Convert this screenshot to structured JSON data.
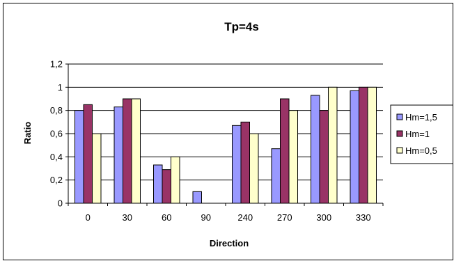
{
  "chart_data": {
    "type": "bar",
    "title": "Tp=4s",
    "xlabel": "Direction",
    "ylabel": "Ratio",
    "categories": [
      "0",
      "30",
      "60",
      "90",
      "240",
      "270",
      "300",
      "330"
    ],
    "ylim": [
      0,
      1.2
    ],
    "yticks": [
      0,
      0.2,
      0.4,
      0.6,
      0.8,
      1,
      1.2
    ],
    "ytick_labels": [
      "0",
      "0,2",
      "0,4",
      "0,6",
      "0,8",
      "1",
      "1,2"
    ],
    "grid": true,
    "legend_position": "right",
    "series": [
      {
        "name": "Hm=1,5",
        "color": "#9999ff",
        "values": [
          0.8,
          0.83,
          0.33,
          0.1,
          0.67,
          0.47,
          0.93,
          0.97
        ]
      },
      {
        "name": "Hm=1",
        "color": "#993366",
        "values": [
          0.85,
          0.9,
          0.29,
          0,
          0.7,
          0.9,
          0.8,
          1.0
        ]
      },
      {
        "name": "Hm=0,5",
        "color": "#ffffcc",
        "values": [
          0.6,
          0.9,
          0.4,
          0,
          0.6,
          0.8,
          1.0,
          1.0
        ]
      }
    ]
  }
}
